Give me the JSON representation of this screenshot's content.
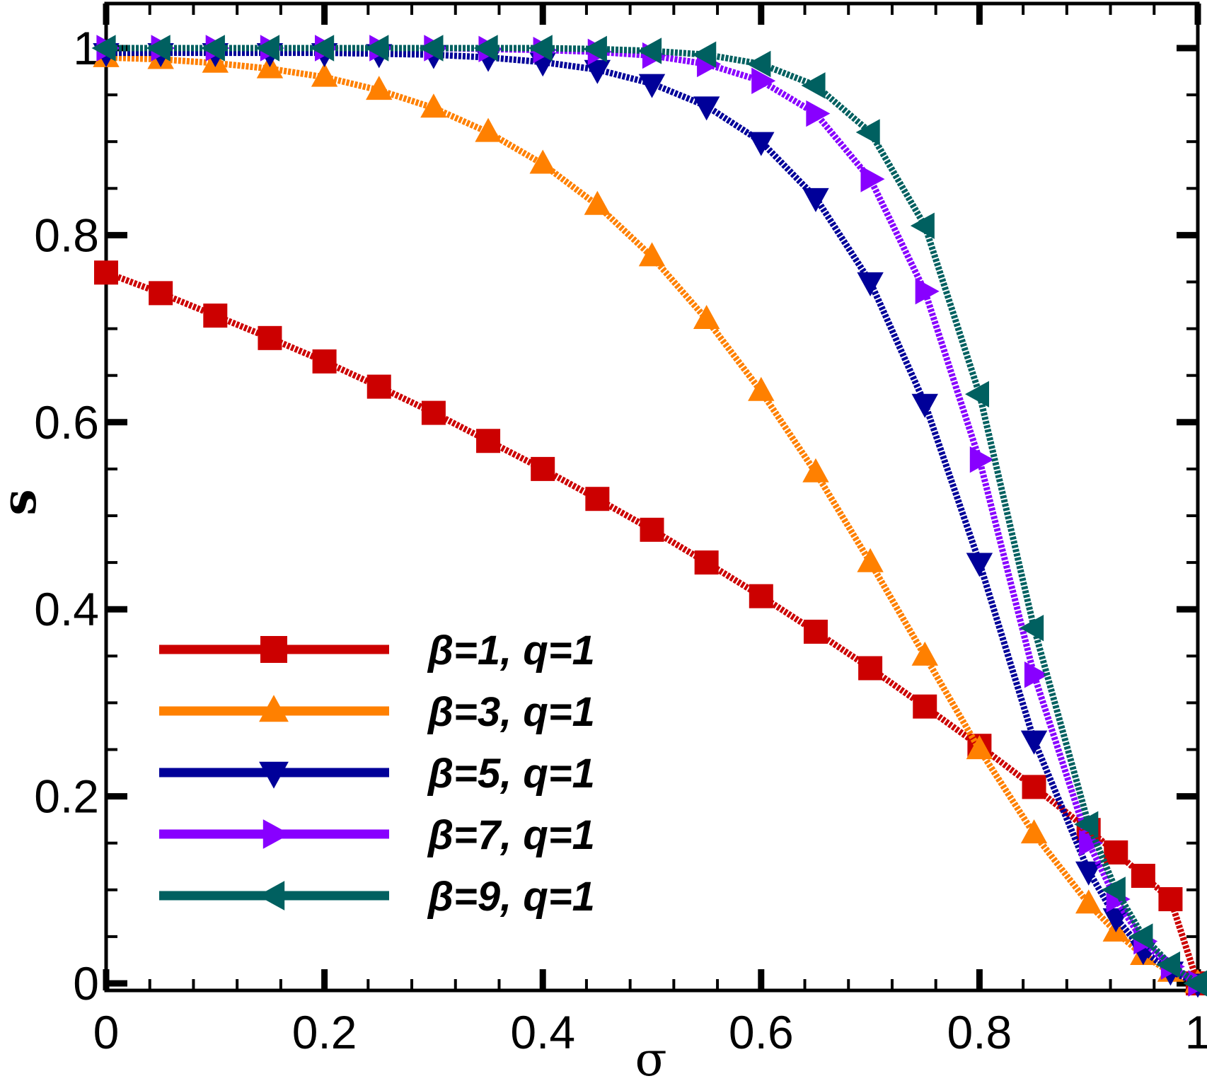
{
  "chart_data": {
    "type": "line",
    "xlabel": "σ",
    "ylabel": "s",
    "xlim": [
      0,
      1
    ],
    "ylim": [
      0,
      1
    ],
    "x_ticks": [
      {
        "value": 0,
        "label": "0"
      },
      {
        "value": 0.2,
        "label": "0.2"
      },
      {
        "value": 0.4,
        "label": "0.4"
      },
      {
        "value": 0.6,
        "label": "0.6"
      },
      {
        "value": 0.8,
        "label": "0.8"
      },
      {
        "value": 1,
        "label": "1"
      }
    ],
    "y_ticks": [
      {
        "value": 0,
        "label": "0"
      },
      {
        "value": 0.2,
        "label": "0.2"
      },
      {
        "value": 0.4,
        "label": "0.4"
      },
      {
        "value": 0.6,
        "label": "0.6"
      },
      {
        "value": 0.8,
        "label": "0.8"
      },
      {
        "value": 1,
        "label": "1"
      }
    ],
    "grid": false,
    "legend_position": "bottom-left",
    "x": [
      0,
      0.05,
      0.1,
      0.15,
      0.2,
      0.25,
      0.3,
      0.35,
      0.4,
      0.45,
      0.5,
      0.55,
      0.6,
      0.65,
      0.7,
      0.75,
      0.8,
      0.85,
      0.9,
      0.925,
      0.95,
      0.975,
      1.0
    ],
    "series": [
      {
        "name": "β=1, q=1",
        "color": "#cc0000",
        "marker": "square",
        "values": [
          0.76,
          0.738,
          0.714,
          0.69,
          0.665,
          0.638,
          0.61,
          0.58,
          0.55,
          0.518,
          0.485,
          0.45,
          0.414,
          0.376,
          0.337,
          0.296,
          0.254,
          0.21,
          0.164,
          0.14,
          0.115,
          0.09,
          0.0
        ]
      },
      {
        "name": "β=3, q=1",
        "color": "#ff8000",
        "marker": "triangle-up",
        "values": [
          0.99,
          0.988,
          0.984,
          0.978,
          0.969,
          0.955,
          0.936,
          0.91,
          0.876,
          0.832,
          0.777,
          0.71,
          0.633,
          0.546,
          0.45,
          0.35,
          0.25,
          0.16,
          0.085,
          0.055,
          0.03,
          0.012,
          0.0
        ]
      },
      {
        "name": "β=5, q=1",
        "color": "#000099",
        "marker": "triangle-down",
        "values": [
          0.995,
          0.995,
          0.995,
          0.995,
          0.995,
          0.994,
          0.993,
          0.99,
          0.985,
          0.977,
          0.962,
          0.938,
          0.9,
          0.84,
          0.75,
          0.62,
          0.45,
          0.26,
          0.12,
          0.07,
          0.035,
          0.013,
          0.0
        ]
      },
      {
        "name": "β=7, q=1",
        "color": "#8800ff",
        "marker": "triangle-right",
        "values": [
          1.0,
          1.0,
          1.0,
          1.0,
          1.0,
          1.0,
          1.0,
          0.999,
          0.998,
          0.996,
          0.992,
          0.983,
          0.965,
          0.93,
          0.86,
          0.74,
          0.56,
          0.33,
          0.15,
          0.09,
          0.045,
          0.018,
          0.0
        ]
      },
      {
        "name": "β=9, q=1",
        "color": "#006060",
        "marker": "triangle-left",
        "values": [
          1.0,
          1.0,
          1.0,
          1.0,
          1.0,
          1.0,
          1.0,
          1.0,
          1.0,
          0.999,
          0.997,
          0.993,
          0.983,
          0.96,
          0.91,
          0.81,
          0.63,
          0.38,
          0.17,
          0.1,
          0.05,
          0.02,
          0.0
        ]
      }
    ]
  }
}
